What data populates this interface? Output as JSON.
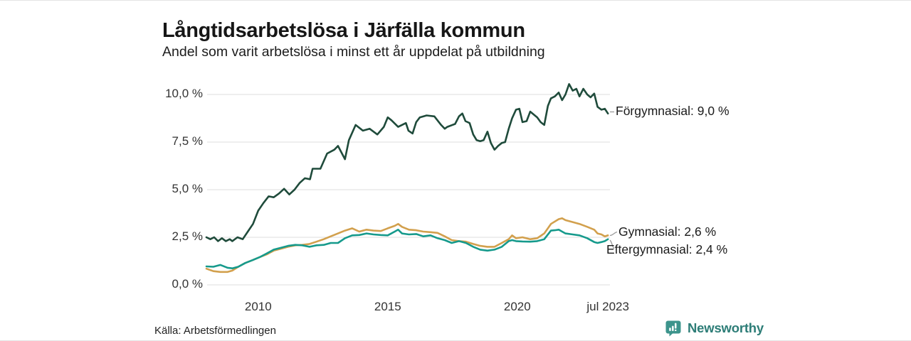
{
  "header": {
    "title": "Långtidsarbetslösa i Järfälla kommun",
    "subtitle": "Andel som varit arbetslösa i minst ett år uppdelat på utbildning"
  },
  "footer": {
    "source": "Källa: Arbetsförmedlingen",
    "logo_text": "Newsworthy",
    "logo_icon": "bar-chart-speech-bubble-icon",
    "logo_color": "#3d948c"
  },
  "chart_data": {
    "type": "line",
    "title": "Långtidsarbetslösa i Järfälla kommun",
    "subtitle": "Andel som varit arbetslösa i minst ett år uppdelat på utbildning",
    "grid": "horizontal",
    "legend_position": "end-of-line-labels",
    "x_axis": {
      "range": [
        2008,
        2023.58
      ],
      "ticks": [
        {
          "value": 2010,
          "label": "2010"
        },
        {
          "value": 2015,
          "label": "2015"
        },
        {
          "value": 2020,
          "label": "2020"
        },
        {
          "value": 2023.5,
          "label": "jul 2023"
        }
      ]
    },
    "y_axis": {
      "unit": "%",
      "range": [
        0,
        10.75
      ],
      "ticks": [
        {
          "value": 0,
          "label": "0,0 %"
        },
        {
          "value": 2.5,
          "label": "2,5 %"
        },
        {
          "value": 5,
          "label": "5,0 %"
        },
        {
          "value": 7.5,
          "label": "7,5 %"
        },
        {
          "value": 10,
          "label": "10,0 %"
        }
      ]
    },
    "series": [
      {
        "name": "Förgymnasial",
        "end_label": "Förgymnasial: 9,0 %",
        "end_value": 9.0,
        "color": "#1f4b3b",
        "points": [
          [
            2008.0,
            2.5
          ],
          [
            2008.15,
            2.4
          ],
          [
            2008.3,
            2.5
          ],
          [
            2008.45,
            2.3
          ],
          [
            2008.6,
            2.45
          ],
          [
            2008.75,
            2.3
          ],
          [
            2008.9,
            2.4
          ],
          [
            2009.0,
            2.3
          ],
          [
            2009.2,
            2.5
          ],
          [
            2009.4,
            2.4
          ],
          [
            2009.6,
            2.8
          ],
          [
            2009.8,
            3.2
          ],
          [
            2010.0,
            3.9
          ],
          [
            2010.2,
            4.3
          ],
          [
            2010.4,
            4.65
          ],
          [
            2010.6,
            4.6
          ],
          [
            2010.8,
            4.8
          ],
          [
            2011.0,
            5.05
          ],
          [
            2011.2,
            4.75
          ],
          [
            2011.4,
            5.0
          ],
          [
            2011.6,
            5.35
          ],
          [
            2011.8,
            5.6
          ],
          [
            2012.0,
            5.55
          ],
          [
            2012.1,
            6.1
          ],
          [
            2012.4,
            6.1
          ],
          [
            2012.66,
            6.9
          ],
          [
            2012.94,
            7.1
          ],
          [
            2013.08,
            7.3
          ],
          [
            2013.35,
            6.6
          ],
          [
            2013.5,
            7.6
          ],
          [
            2013.76,
            8.4
          ],
          [
            2014.04,
            8.1
          ],
          [
            2014.3,
            8.2
          ],
          [
            2014.6,
            7.9
          ],
          [
            2014.85,
            8.3
          ],
          [
            2015.0,
            8.8
          ],
          [
            2015.14,
            8.65
          ],
          [
            2015.4,
            8.3
          ],
          [
            2015.7,
            8.5
          ],
          [
            2015.8,
            8.1
          ],
          [
            2015.96,
            7.95
          ],
          [
            2016.1,
            8.55
          ],
          [
            2016.24,
            8.8
          ],
          [
            2016.5,
            8.9
          ],
          [
            2016.8,
            8.85
          ],
          [
            2017.06,
            8.4
          ],
          [
            2017.2,
            8.2
          ],
          [
            2017.3,
            8.3
          ],
          [
            2017.6,
            8.45
          ],
          [
            2017.75,
            8.85
          ],
          [
            2017.88,
            9.0
          ],
          [
            2018.0,
            8.6
          ],
          [
            2018.16,
            8.5
          ],
          [
            2018.3,
            7.9
          ],
          [
            2018.43,
            7.6
          ],
          [
            2018.57,
            7.55
          ],
          [
            2018.7,
            7.6
          ],
          [
            2018.85,
            8.05
          ],
          [
            2018.98,
            7.45
          ],
          [
            2019.12,
            7.1
          ],
          [
            2019.26,
            7.3
          ],
          [
            2019.4,
            7.45
          ],
          [
            2019.53,
            7.5
          ],
          [
            2019.67,
            8.2
          ],
          [
            2019.8,
            8.75
          ],
          [
            2019.95,
            9.2
          ],
          [
            2020.08,
            9.25
          ],
          [
            2020.2,
            8.55
          ],
          [
            2020.36,
            8.6
          ],
          [
            2020.5,
            9.1
          ],
          [
            2020.77,
            8.8
          ],
          [
            2020.9,
            8.55
          ],
          [
            2021.04,
            8.4
          ],
          [
            2021.18,
            9.4
          ],
          [
            2021.3,
            9.8
          ],
          [
            2021.45,
            9.9
          ],
          [
            2021.6,
            10.1
          ],
          [
            2021.73,
            9.7
          ],
          [
            2021.86,
            10.0
          ],
          [
            2022.0,
            10.55
          ],
          [
            2022.14,
            10.2
          ],
          [
            2022.28,
            10.3
          ],
          [
            2022.4,
            9.9
          ],
          [
            2022.55,
            10.3
          ],
          [
            2022.7,
            10.0
          ],
          [
            2022.83,
            9.85
          ],
          [
            2022.97,
            10.05
          ],
          [
            2023.1,
            9.35
          ],
          [
            2023.25,
            9.2
          ],
          [
            2023.38,
            9.25
          ],
          [
            2023.5,
            9.0
          ]
        ]
      },
      {
        "name": "Gymnasial",
        "end_label": "Gymnasial: 2,6 %",
        "end_value": 2.6,
        "color": "#d2a04d",
        "points": [
          [
            2008.0,
            0.85
          ],
          [
            2008.27,
            0.72
          ],
          [
            2008.54,
            0.68
          ],
          [
            2008.82,
            0.68
          ],
          [
            2009.0,
            0.75
          ],
          [
            2009.23,
            0.95
          ],
          [
            2009.5,
            1.15
          ],
          [
            2009.78,
            1.3
          ],
          [
            2010.05,
            1.45
          ],
          [
            2010.33,
            1.6
          ],
          [
            2010.6,
            1.8
          ],
          [
            2010.88,
            1.9
          ],
          [
            2011.15,
            2.0
          ],
          [
            2011.43,
            2.08
          ],
          [
            2011.7,
            2.1
          ],
          [
            2011.98,
            2.15
          ],
          [
            2012.25,
            2.27
          ],
          [
            2012.53,
            2.4
          ],
          [
            2012.8,
            2.55
          ],
          [
            2013.08,
            2.7
          ],
          [
            2013.35,
            2.85
          ],
          [
            2013.63,
            2.97
          ],
          [
            2013.9,
            2.8
          ],
          [
            2014.18,
            2.9
          ],
          [
            2014.45,
            2.85
          ],
          [
            2014.73,
            2.83
          ],
          [
            2015.0,
            2.97
          ],
          [
            2015.27,
            3.1
          ],
          [
            2015.4,
            3.2
          ],
          [
            2015.55,
            3.05
          ],
          [
            2015.82,
            2.9
          ],
          [
            2016.1,
            2.87
          ],
          [
            2016.37,
            2.8
          ],
          [
            2016.65,
            2.77
          ],
          [
            2016.92,
            2.73
          ],
          [
            2017.2,
            2.55
          ],
          [
            2017.47,
            2.35
          ],
          [
            2017.75,
            2.3
          ],
          [
            2018.02,
            2.27
          ],
          [
            2018.3,
            2.15
          ],
          [
            2018.57,
            2.05
          ],
          [
            2018.85,
            2.0
          ],
          [
            2019.12,
            2.0
          ],
          [
            2019.4,
            2.2
          ],
          [
            2019.67,
            2.4
          ],
          [
            2019.8,
            2.6
          ],
          [
            2019.95,
            2.45
          ],
          [
            2020.2,
            2.5
          ],
          [
            2020.5,
            2.4
          ],
          [
            2020.77,
            2.45
          ],
          [
            2021.04,
            2.7
          ],
          [
            2021.3,
            3.2
          ],
          [
            2021.6,
            3.45
          ],
          [
            2021.73,
            3.5
          ],
          [
            2021.86,
            3.4
          ],
          [
            2022.14,
            3.3
          ],
          [
            2022.4,
            3.2
          ],
          [
            2022.7,
            3.05
          ],
          [
            2022.97,
            2.9
          ],
          [
            2023.1,
            2.7
          ],
          [
            2023.25,
            2.65
          ],
          [
            2023.38,
            2.55
          ],
          [
            2023.5,
            2.6
          ]
        ]
      },
      {
        "name": "Eftergymnasial",
        "end_label": "Eftergymnasial: 2,4 %",
        "end_value": 2.4,
        "color": "#169a8c",
        "points": [
          [
            2008.0,
            0.97
          ],
          [
            2008.27,
            0.95
          ],
          [
            2008.54,
            1.05
          ],
          [
            2008.82,
            0.9
          ],
          [
            2009.0,
            0.87
          ],
          [
            2009.23,
            0.95
          ],
          [
            2009.5,
            1.15
          ],
          [
            2009.78,
            1.3
          ],
          [
            2010.05,
            1.45
          ],
          [
            2010.33,
            1.65
          ],
          [
            2010.6,
            1.85
          ],
          [
            2010.88,
            1.95
          ],
          [
            2011.15,
            2.05
          ],
          [
            2011.43,
            2.1
          ],
          [
            2011.7,
            2.08
          ],
          [
            2011.98,
            2.0
          ],
          [
            2012.25,
            2.08
          ],
          [
            2012.53,
            2.1
          ],
          [
            2012.8,
            2.2
          ],
          [
            2013.08,
            2.2
          ],
          [
            2013.35,
            2.45
          ],
          [
            2013.63,
            2.6
          ],
          [
            2013.9,
            2.62
          ],
          [
            2014.18,
            2.7
          ],
          [
            2014.45,
            2.65
          ],
          [
            2014.73,
            2.62
          ],
          [
            2015.0,
            2.6
          ],
          [
            2015.27,
            2.8
          ],
          [
            2015.4,
            2.9
          ],
          [
            2015.55,
            2.7
          ],
          [
            2015.82,
            2.65
          ],
          [
            2016.1,
            2.67
          ],
          [
            2016.37,
            2.55
          ],
          [
            2016.65,
            2.6
          ],
          [
            2016.92,
            2.45
          ],
          [
            2017.2,
            2.35
          ],
          [
            2017.47,
            2.2
          ],
          [
            2017.75,
            2.3
          ],
          [
            2018.02,
            2.2
          ],
          [
            2018.3,
            2.0
          ],
          [
            2018.57,
            1.85
          ],
          [
            2018.85,
            1.8
          ],
          [
            2019.12,
            1.85
          ],
          [
            2019.4,
            2.0
          ],
          [
            2019.67,
            2.3
          ],
          [
            2019.8,
            2.35
          ],
          [
            2019.95,
            2.3
          ],
          [
            2020.2,
            2.28
          ],
          [
            2020.5,
            2.27
          ],
          [
            2020.77,
            2.3
          ],
          [
            2021.04,
            2.4
          ],
          [
            2021.3,
            2.85
          ],
          [
            2021.45,
            2.87
          ],
          [
            2021.6,
            2.9
          ],
          [
            2021.73,
            2.8
          ],
          [
            2021.86,
            2.7
          ],
          [
            2022.14,
            2.65
          ],
          [
            2022.4,
            2.6
          ],
          [
            2022.7,
            2.45
          ],
          [
            2022.97,
            2.25
          ],
          [
            2023.1,
            2.2
          ],
          [
            2023.25,
            2.25
          ],
          [
            2023.38,
            2.3
          ],
          [
            2023.5,
            2.4
          ]
        ]
      }
    ]
  }
}
